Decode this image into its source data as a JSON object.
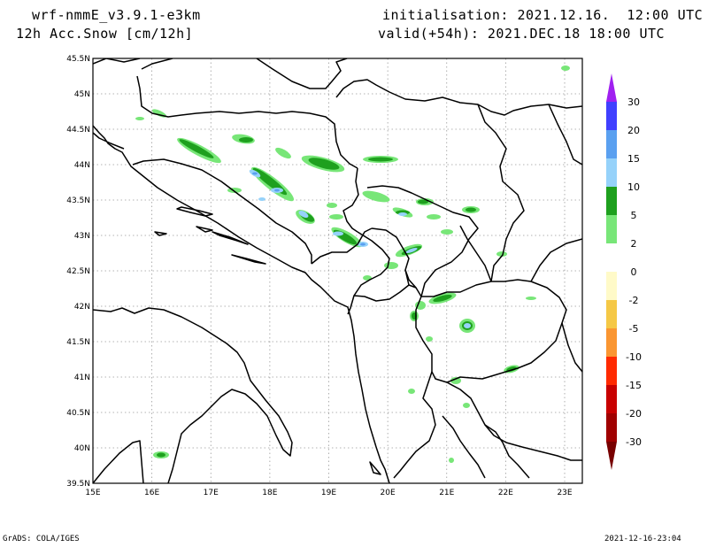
{
  "header": {
    "model": "wrf-nmmE_v3.9.1-e3km",
    "field": "12h Acc.Snow [cm/12h]",
    "init": "initialisation: 2021.12.16.  12:00 UTC",
    "valid": "valid(+54h): 2021.DEC.18 18:00 UTC"
  },
  "footer": {
    "left": "GrADS: COLA/IGES",
    "right": "2021-12-16-23:04"
  },
  "map": {
    "lat_labels": [
      "45.5N",
      "45N",
      "44.5N",
      "44N",
      "43.5N",
      "43N",
      "42.5N",
      "42N",
      "41.5N",
      "41N",
      "40.5N",
      "40N",
      "39.5N"
    ],
    "lon_labels": [
      "15E",
      "16E",
      "17E",
      "18E",
      "19E",
      "20E",
      "21E",
      "22E",
      "23E"
    ],
    "lon_range": [
      15,
      23.3
    ],
    "lat_range": [
      39.5,
      45.5
    ],
    "grid": "dotted"
  },
  "legend": {
    "labels": [
      "30",
      "20",
      "15",
      "10",
      "5",
      "2",
      "0",
      "-2",
      "-5",
      "-10",
      "-15",
      "-20",
      "-30"
    ],
    "colors": [
      "#4040ff",
      "#5aa0f0",
      "#96d2fa",
      "#1ea01e",
      "#78e678",
      "#ffffff",
      "#fffac8",
      "#f5c846",
      "#fa9632",
      "#ff2a00",
      "#c80000",
      "#a00000"
    ],
    "top_color": "#a020f0",
    "bottom_color": "#780000"
  }
}
